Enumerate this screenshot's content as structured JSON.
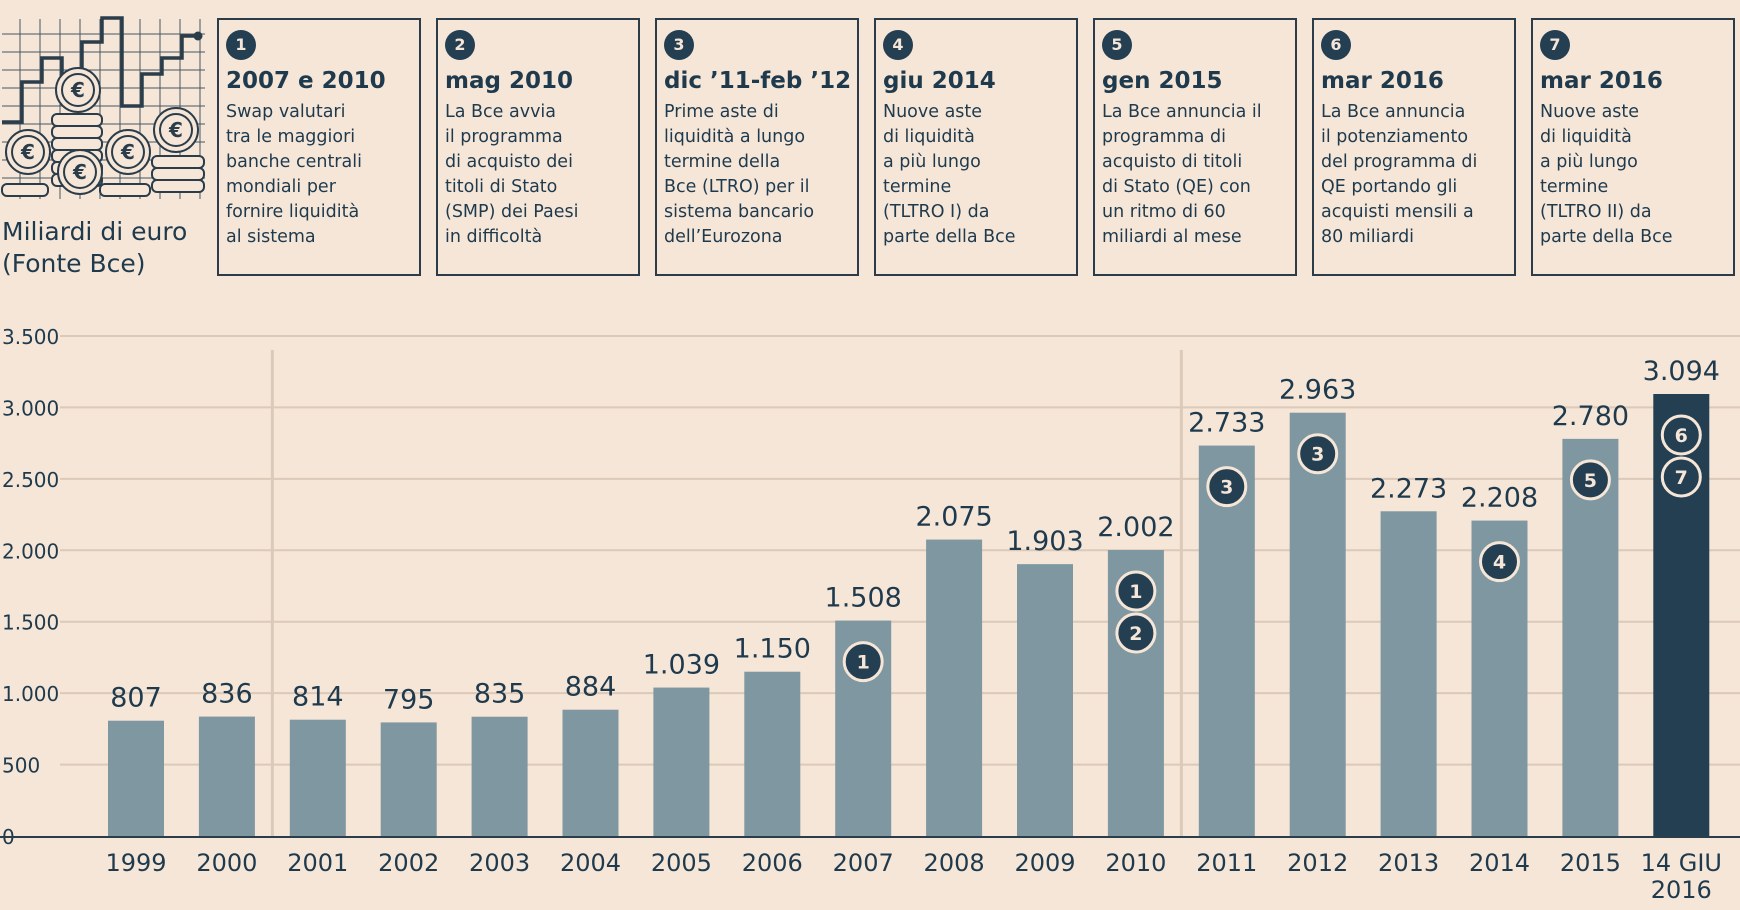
{
  "header": {
    "unit_label_line1": "Miliardi di euro",
    "unit_label_line2": "(Fonte Bce)"
  },
  "events": [
    {
      "num": "1",
      "date": "2007 e 2010",
      "text": "Swap valutari\ntra le maggiori\nbanche centrali\nmondiali per\nfornire liquidità\nal sistema"
    },
    {
      "num": "2",
      "date": "mag 2010",
      "text": "La Bce avvia\nil programma\ndi acquisto dei\ntitoli di Stato\n(SMP) dei Paesi\nin difficoltà"
    },
    {
      "num": "3",
      "date": "dic ’11-feb ’12",
      "text": "Prime aste di\nliquidità a lungo\ntermine della\nBce (LTRO) per il\nsistema bancario\ndell’Eurozona"
    },
    {
      "num": "4",
      "date": "giu 2014",
      "text": "Nuove aste\ndi liquidità\na più lungo\ntermine\n(TLTRO I) da\nparte della Bce"
    },
    {
      "num": "5",
      "date": "gen 2015",
      "text": "La Bce annuncia il\nprogramma di\nacquisto di titoli\ndi Stato (QE) con\nun ritmo di 60\nmiliardi al mese"
    },
    {
      "num": "6",
      "date": "mar 2016",
      "text": "La Bce annuncia\nil potenziamento\ndel programma di\nQE portando gli\nacquisti mensili a\n80 miliardi"
    },
    {
      "num": "7",
      "date": "mar 2016",
      "text": "Nuove aste\ndi liquidità\na più lungo\ntermine\n(TLTRO II) da\nparte della Bce"
    }
  ],
  "chart_data": {
    "type": "bar",
    "categories": [
      "1999",
      "2000",
      "2001",
      "2002",
      "2003",
      "2004",
      "2005",
      "2006",
      "2007",
      "2008",
      "2009",
      "2010",
      "2011",
      "2012",
      "2013",
      "2014",
      "2015",
      "14 GIU\n2016"
    ],
    "values": [
      807,
      836,
      814,
      795,
      835,
      884,
      1039,
      1150,
      1508,
      2075,
      1903,
      2002,
      2733,
      2963,
      2273,
      2208,
      2780,
      3094
    ],
    "value_labels": [
      "807",
      "836",
      "814",
      "795",
      "835",
      "884",
      "1.039",
      "1.150",
      "1.508",
      "2.075",
      "1.903",
      "2.002",
      "2.733",
      "2.963",
      "2.273",
      "2.208",
      "2.780",
      "3.094"
    ],
    "y_ticks": [
      0,
      500,
      1000,
      1500,
      2000,
      2500,
      3000,
      3500
    ],
    "y_tick_labels": [
      "0",
      "500",
      "1.000",
      "1.500",
      "2.000",
      "2.500",
      "3.000",
      "3.500"
    ],
    "ylim": [
      0,
      3500
    ],
    "grid": true,
    "highlight_last": true,
    "colors": {
      "bar": "#7e97a0",
      "highlight": "#243e52",
      "grid": "#dcc9b8",
      "text": "#1f3a4d"
    },
    "markers": [
      {
        "category_index": 8,
        "labels": [
          "1"
        ]
      },
      {
        "category_index": 11,
        "labels": [
          "1",
          "2"
        ]
      },
      {
        "category_index": 12,
        "labels": [
          "3"
        ]
      },
      {
        "category_index": 13,
        "labels": [
          "3"
        ]
      },
      {
        "category_index": 15,
        "labels": [
          "4"
        ]
      },
      {
        "category_index": 16,
        "labels": [
          "5"
        ]
      },
      {
        "category_index": 17,
        "labels": [
          "6",
          "7"
        ]
      }
    ],
    "separators_after_index": [
      1,
      11
    ]
  }
}
